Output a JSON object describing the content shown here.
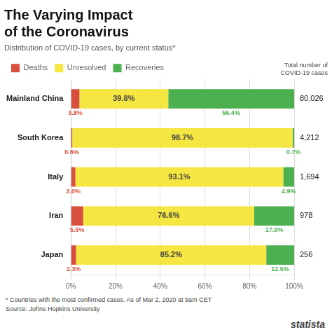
{
  "chart_data": {
    "type": "bar",
    "orientation": "horizontal",
    "stacked": true,
    "title": "The Varying Impact\nof the Coronavirus",
    "subtitle": "Distribution of COVID-19 cases, by current status*",
    "categories": [
      "Mainland China",
      "South Korea",
      "Italy",
      "Iran",
      "Japan"
    ],
    "series": [
      {
        "name": "Deaths",
        "color": "#d94f3d",
        "values": [
          3.8,
          0.6,
          2.0,
          5.5,
          2.3
        ],
        "value_labels": [
          "3.8%",
          "0.6%",
          "2.0%",
          "5.5%",
          "2.3%"
        ]
      },
      {
        "name": "Unresolved",
        "color": "#f5e642",
        "values": [
          39.8,
          98.7,
          93.1,
          76.6,
          85.2
        ],
        "value_labels": [
          "39.8%",
          "98.7%",
          "93.1%",
          "76.6%",
          "85.2%"
        ]
      },
      {
        "name": "Recoveries",
        "color": "#4caf50",
        "values": [
          56.4,
          0.7,
          4.9,
          17.9,
          12.5
        ],
        "value_labels": [
          "56.4%",
          "0.7%",
          "4.9%",
          "17.9%",
          "12.5%"
        ]
      }
    ],
    "xlim": [
      0,
      100
    ],
    "xticks": [
      {
        "value": 0,
        "label": "0%"
      },
      {
        "value": 20,
        "label": "20%"
      },
      {
        "value": 40,
        "label": "40%"
      },
      {
        "value": 60,
        "label": "60%"
      },
      {
        "value": 80,
        "label": "80%"
      },
      {
        "value": 100,
        "label": "100%"
      }
    ],
    "grid": true,
    "legend": "top",
    "data_labels": true,
    "totals_title": "Total number of\nCOVID-19 cases",
    "totals": [
      {
        "value": 80026,
        "label": "80,026"
      },
      {
        "value": 4212,
        "label": "4,212"
      },
      {
        "value": 1694,
        "label": "1,694"
      },
      {
        "value": 978,
        "label": "978"
      },
      {
        "value": 256,
        "label": "256"
      }
    ],
    "notes": [
      "* Countries with the most confirmed cases. As of Mar 2, 2020 at 9am CET",
      "Source: Johns Hopkins University"
    ],
    "brand": "statista"
  }
}
